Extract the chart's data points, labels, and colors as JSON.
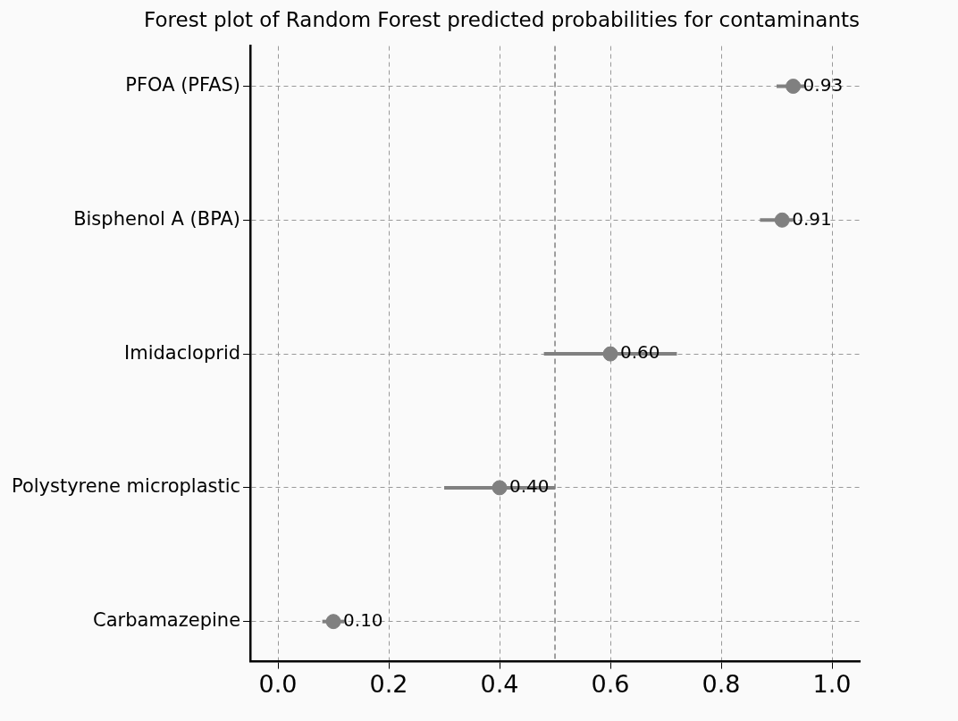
{
  "chart_data": {
    "type": "scatter",
    "title": "Forest plot of Random Forest predicted probabilities for contaminants",
    "categories": [
      "PFOA (PFAS)",
      "Bisphenol A (BPA)",
      "Imidacloprid",
      "Polystyrene microplastic",
      "Carbamazepine"
    ],
    "values": [
      0.93,
      0.91,
      0.6,
      0.4,
      0.1
    ],
    "errors": [
      [
        0.9,
        0.95
      ],
      [
        0.87,
        0.93
      ],
      [
        0.48,
        0.72
      ],
      [
        0.3,
        0.5
      ],
      [
        0.08,
        0.12
      ]
    ],
    "value_labels": [
      "0.93",
      "0.91",
      "0.60",
      "0.40",
      "0.10"
    ],
    "color": "#808080",
    "orientation": "horizontal",
    "marker": "circle",
    "xlim": [
      -0.05,
      1.05
    ],
    "xticks": [
      {
        "value": 0,
        "label": "0.0"
      },
      {
        "value": 0.2,
        "label": "0.2"
      },
      {
        "value": 0.4,
        "label": "0.4"
      },
      {
        "value": 0.6,
        "label": "0.6"
      },
      {
        "value": 0.8,
        "label": "0.8"
      },
      {
        "value": 1,
        "label": "1.0"
      }
    ],
    "ref_lines": [
      {
        "axis": "x",
        "value": 0.5,
        "color": "#808080",
        "line_style": "dashed"
      }
    ],
    "grid": true,
    "legend": false
  }
}
